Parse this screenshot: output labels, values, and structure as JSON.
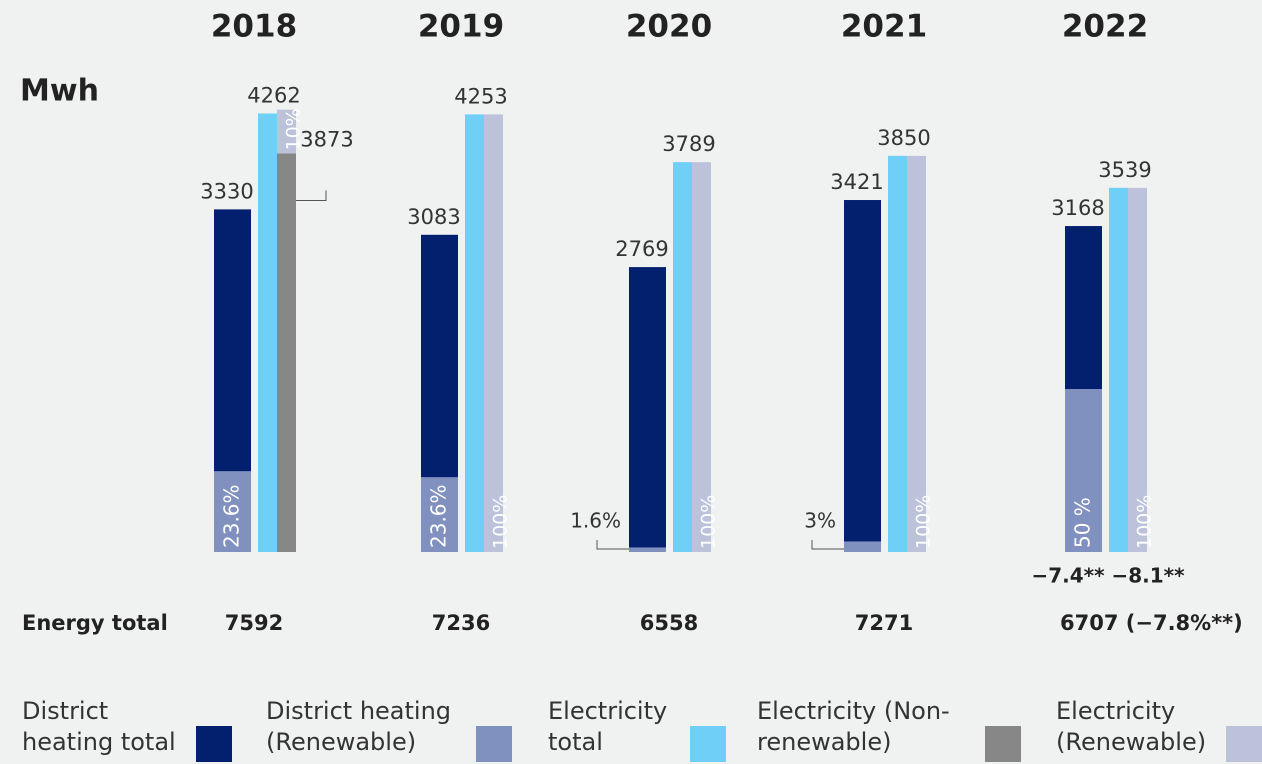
{
  "chart_data": {
    "type": "bar",
    "y_label": "Mwh",
    "categories": [
      "2018",
      "2019",
      "2020",
      "2021",
      "2022"
    ],
    "series": [
      {
        "name": "District heating total",
        "color": "#03206f",
        "values": [
          3330,
          3083,
          2769,
          3421,
          3168
        ]
      },
      {
        "name": "District heating (Renewable)",
        "color": "#8191bf",
        "values": [
          23.6,
          23.6,
          1.6,
          3,
          50
        ],
        "value_labels": [
          "23.6%",
          "23.6%",
          "1.6%",
          "3%",
          "50 %"
        ]
      },
      {
        "name": "Electricity total",
        "color": "#6fcff7",
        "values": [
          4262,
          4253,
          3789,
          3850,
          3539
        ]
      },
      {
        "name": "Electricity (Non-renewable)",
        "color": "#878787",
        "values": [
          3873,
          null,
          null,
          null,
          null
        ]
      },
      {
        "name": "Electricity (Renewable)",
        "color": "#bcc2d9",
        "values": [
          10,
          100,
          100,
          100,
          100
        ],
        "value_labels": [
          "10%",
          "100%",
          "100%",
          "100%",
          "100%"
        ]
      }
    ],
    "annotations": [
      {
        "text": "−7.4**"
      },
      {
        "text": "−8.1**"
      }
    ],
    "energy_total": {
      "label": "Energy total",
      "values": [
        7592,
        7236,
        6558,
        7271,
        6707
      ],
      "value_labels": [
        "7592",
        "7236",
        "6558",
        "7271",
        "6707 (−7.8%**)"
      ]
    },
    "ylim": [
      0,
      4500
    ]
  }
}
